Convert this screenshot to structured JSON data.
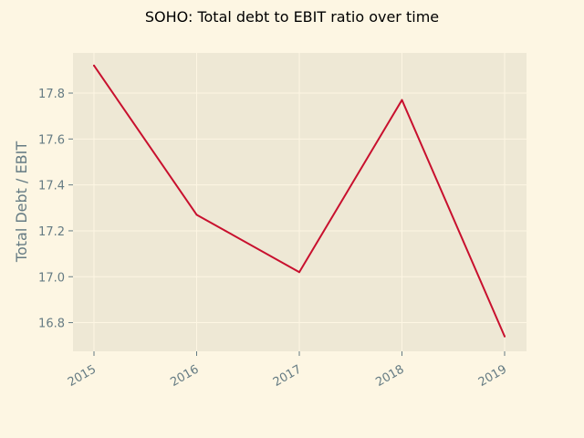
{
  "chart_data": {
    "type": "line",
    "title": "SOHO: Total debt to EBIT ratio over time",
    "xlabel": "",
    "ylabel": "Total Debt / EBIT",
    "categories": [
      "2015",
      "2016",
      "2017",
      "2018",
      "2019"
    ],
    "series": [
      {
        "values": [
          17.92,
          17.27,
          17.02,
          17.77,
          16.74
        ],
        "color": "#c8102e"
      }
    ],
    "ylim": [
      16.675,
      17.975
    ],
    "yticks": [
      "16.8",
      "17.0",
      "17.2",
      "17.4",
      "17.6",
      "17.8"
    ],
    "grid": true,
    "legend": "none"
  },
  "colors": {
    "figure_background": "#fdf6e3",
    "plot_background": "#eee8d5",
    "grid": "#fdf6e3",
    "tick_text": "#657b83",
    "line": "#c8102e"
  }
}
